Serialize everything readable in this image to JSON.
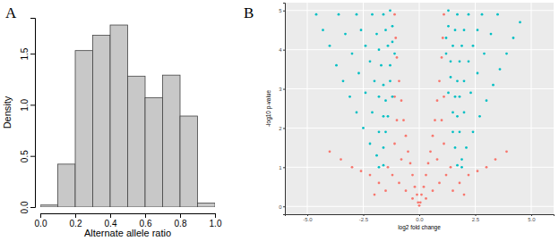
{
  "chart_data": [
    {
      "type": "histogram",
      "title": "A",
      "x_label": "Alternate allele ratio",
      "y_label": "Density",
      "bins": [
        0.0,
        0.1,
        0.2,
        0.3,
        0.4,
        0.5,
        0.6,
        0.7,
        0.8,
        0.9,
        1.0
      ],
      "values": [
        0.02,
        0.42,
        1.53,
        1.68,
        1.78,
        1.28,
        1.07,
        1.29,
        0.89,
        0.04
      ],
      "color": "#c8c8c8",
      "xlim": [
        0,
        1.0
      ],
      "xticks": [
        {
          "value": 0,
          "label": "0.0"
        },
        0.2,
        0.4,
        0.6,
        0.8,
        {
          "value": 1,
          "label": "1.0"
        }
      ],
      "ylim": [
        0,
        1.85
      ],
      "yticks": [
        {
          "value": 0,
          "label": "0.0"
        },
        0.5,
        {
          "value": 1,
          "label": "1.0"
        },
        1.5
      ],
      "grid": false
    },
    {
      "type": "scatter",
      "title": "B",
      "x_label": "log2 fold change",
      "y_label": "-log10 p-value",
      "xlim": [
        -6,
        6
      ],
      "xticks": [
        {
          "value": -5,
          "label": "-5.0"
        },
        -2.5,
        {
          "value": 0,
          "label": "0.0"
        },
        2.5,
        {
          "value": 5,
          "label": "5.0"
        }
      ],
      "ylim": [
        -0.2,
        5.2
      ],
      "yticks": [
        0,
        1,
        2,
        3,
        4,
        5
      ],
      "grid": true,
      "marker": "circle",
      "series": [
        {
          "color": "#f8766d",
          "x": [
            0,
            0.05,
            -0.05,
            0.1,
            -0.1,
            0.2,
            -0.2,
            0.3,
            -0.3,
            0.4,
            -0.4,
            0.5,
            -0.5,
            0.6,
            -0.6,
            0.7,
            -0.7,
            0.8,
            -0.8,
            0.9,
            -0.9,
            1.0,
            -1.0,
            1.05,
            -1.05,
            1.1,
            -1.1,
            0.3,
            -0.3,
            0.6,
            -0.6,
            0.9,
            -0.9,
            1.2,
            -1.2,
            0.8,
            -0.8,
            1.1,
            -1.1,
            1.0,
            -1.0,
            1.1,
            -1.1,
            1.4,
            -1.4,
            -1.8,
            -2.2,
            -2.6,
            -3.0,
            -3.5,
            -4.0,
            1.8,
            2.2,
            2.6,
            3.0,
            3.4,
            3.9,
            1.5,
            -1.5,
            2.0,
            -2.0
          ],
          "values": [
            0.02,
            0.1,
            0.1,
            0.3,
            0.3,
            0.5,
            0.5,
            0.8,
            0.8,
            1.1,
            1.1,
            1.4,
            1.4,
            1.8,
            1.8,
            2.2,
            2.2,
            2.7,
            2.7,
            3.2,
            3.2,
            3.8,
            3.8,
            4.3,
            4.3,
            4.9,
            4.9,
            0.2,
            0.2,
            0.4,
            0.4,
            0.6,
            0.6,
            0.8,
            0.8,
            1.2,
            1.2,
            1.6,
            1.6,
            2.2,
            2.2,
            2.8,
            2.8,
            1.0,
            1.0,
            0.6,
            0.8,
            0.9,
            1.0,
            1.2,
            1.4,
            0.6,
            0.8,
            0.9,
            1.0,
            1.2,
            1.4,
            0.4,
            0.4,
            0.3,
            0.3
          ]
        },
        {
          "color": "#00bfc4",
          "x": [
            -4.6,
            -4.3,
            -4.0,
            -3.7,
            -3.4,
            -3.1,
            -2.8,
            -2.5,
            -2.2,
            -1.9,
            -3.6,
            -3.3,
            -3.0,
            -2.7,
            -2.4,
            -2.1,
            -1.8,
            -1.6,
            -2.8,
            -2.6,
            -2.4,
            -2.2,
            -2.0,
            -1.8,
            -1.6,
            -1.5,
            -2.1,
            -1.9,
            -1.8,
            -1.7,
            -1.6,
            -1.5,
            -1.4,
            -1.6,
            -1.5,
            -1.4,
            -1.3,
            -1.3,
            -1.2,
            -1.3,
            -1.2,
            -1.2,
            -1.1,
            -1.8,
            -1.6,
            4.5,
            4.2,
            3.9,
            3.6,
            3.3,
            3.0,
            2.7,
            2.4,
            2.1,
            1.9,
            3.5,
            3.2,
            2.9,
            2.6,
            2.3,
            2.0,
            1.8,
            1.6,
            2.8,
            2.6,
            2.4,
            2.2,
            2.0,
            1.8,
            1.7,
            1.5,
            2.2,
            2.0,
            1.9,
            1.8,
            1.7,
            1.6,
            1.5,
            1.7,
            1.6,
            1.5,
            1.4,
            1.4,
            1.3,
            1.3,
            1.3,
            1.2,
            1.2,
            1.7,
            1.9
          ],
          "values": [
            4.9,
            4.5,
            4.1,
            3.6,
            3.2,
            2.8,
            2.4,
            2.0,
            1.6,
            1.3,
            4.9,
            4.4,
            3.9,
            3.4,
            2.9,
            2.4,
            1.9,
            1.5,
            4.9,
            4.5,
            4.1,
            3.7,
            3.2,
            2.8,
            2.3,
            1.9,
            4.9,
            4.4,
            4.0,
            3.6,
            3.1,
            2.7,
            2.3,
            4.9,
            4.5,
            4.1,
            3.6,
            3.2,
            2.8,
            5.0,
            4.6,
            4.2,
            3.9,
            1.0,
            1.05,
            4.7,
            4.3,
            3.9,
            3.5,
            3.1,
            2.7,
            2.3,
            1.9,
            1.5,
            1.2,
            4.9,
            4.4,
            3.9,
            3.4,
            2.9,
            2.4,
            1.9,
            1.5,
            4.9,
            4.5,
            4.1,
            3.7,
            3.2,
            2.8,
            2.3,
            1.9,
            4.9,
            4.5,
            4.1,
            3.7,
            3.2,
            2.8,
            2.4,
            4.9,
            4.5,
            4.1,
            3.7,
            3.3,
            2.9,
            5.0,
            4.6,
            4.3,
            3.9,
            1.05,
            1.0
          ]
        }
      ]
    }
  ]
}
